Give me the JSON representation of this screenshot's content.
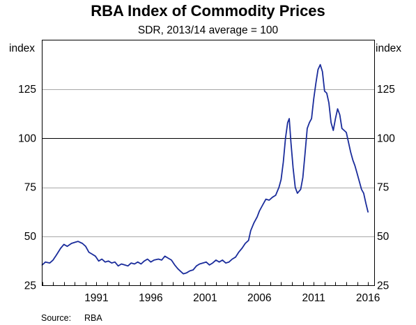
{
  "chart_data": {
    "type": "line",
    "title": "RBA Index of Commodity Prices",
    "subtitle": "SDR, 2013/14 average = 100",
    "ylabel_left": "index",
    "ylabel_right": "index",
    "xlim": [
      1986.0,
      2016.6
    ],
    "ylim": [
      25,
      150
    ],
    "yticks": [
      25,
      50,
      75,
      100,
      125
    ],
    "xticks": [
      {
        "value": 1991.0,
        "label": "1991"
      },
      {
        "value": 1996.0,
        "label": "1996"
      },
      {
        "value": 2001.0,
        "label": "2001"
      },
      {
        "value": 2006.0,
        "label": "2006"
      },
      {
        "value": 2011.0,
        "label": "2011"
      },
      {
        "value": 2016.0,
        "label": "2016"
      }
    ],
    "grid": "horizontal",
    "reference_line": 100,
    "series": [
      {
        "color": "#1a2c9b",
        "points": [
          [
            1986.0,
            35.5
          ],
          [
            1986.3,
            37.0
          ],
          [
            1986.7,
            36.5
          ],
          [
            1987.0,
            38.0
          ],
          [
            1987.3,
            40.5
          ],
          [
            1987.7,
            44.0
          ],
          [
            1988.0,
            46.0
          ],
          [
            1988.3,
            45.0
          ],
          [
            1988.7,
            46.5
          ],
          [
            1989.0,
            47.0
          ],
          [
            1989.3,
            47.5
          ],
          [
            1989.7,
            46.5
          ],
          [
            1990.0,
            45.0
          ],
          [
            1990.3,
            42.0
          ],
          [
            1990.6,
            41.0
          ],
          [
            1990.9,
            40.0
          ],
          [
            1991.2,
            37.5
          ],
          [
            1991.5,
            38.5
          ],
          [
            1991.8,
            37.0
          ],
          [
            1992.1,
            37.5
          ],
          [
            1992.4,
            36.5
          ],
          [
            1992.7,
            37.0
          ],
          [
            1993.0,
            35.0
          ],
          [
            1993.3,
            36.0
          ],
          [
            1993.6,
            35.5
          ],
          [
            1993.9,
            35.0
          ],
          [
            1994.2,
            36.5
          ],
          [
            1994.5,
            36.0
          ],
          [
            1994.8,
            37.0
          ],
          [
            1995.1,
            36.0
          ],
          [
            1995.4,
            37.5
          ],
          [
            1995.7,
            38.5
          ],
          [
            1996.0,
            37.0
          ],
          [
            1996.3,
            38.0
          ],
          [
            1996.7,
            38.5
          ],
          [
            1997.0,
            38.0
          ],
          [
            1997.3,
            40.0
          ],
          [
            1997.6,
            39.0
          ],
          [
            1997.9,
            38.0
          ],
          [
            1998.2,
            35.5
          ],
          [
            1998.5,
            33.5
          ],
          [
            1998.8,
            32.0
          ],
          [
            1999.0,
            31.0
          ],
          [
            1999.3,
            31.5
          ],
          [
            1999.6,
            32.5
          ],
          [
            1999.9,
            33.0
          ],
          [
            2000.2,
            35.0
          ],
          [
            2000.5,
            36.0
          ],
          [
            2000.8,
            36.5
          ],
          [
            2001.1,
            37.0
          ],
          [
            2001.4,
            35.5
          ],
          [
            2001.7,
            36.5
          ],
          [
            2002.0,
            38.0
          ],
          [
            2002.3,
            37.0
          ],
          [
            2002.6,
            38.0
          ],
          [
            2002.9,
            36.5
          ],
          [
            2003.2,
            37.0
          ],
          [
            2003.5,
            38.5
          ],
          [
            2003.8,
            39.5
          ],
          [
            2004.1,
            42.0
          ],
          [
            2004.4,
            44.0
          ],
          [
            2004.7,
            46.5
          ],
          [
            2005.0,
            48.0
          ],
          [
            2005.2,
            53.0
          ],
          [
            2005.5,
            57.0
          ],
          [
            2005.8,
            60.0
          ],
          [
            2006.0,
            63.0
          ],
          [
            2006.3,
            66.0
          ],
          [
            2006.6,
            69.0
          ],
          [
            2006.9,
            68.5
          ],
          [
            2007.2,
            70.0
          ],
          [
            2007.5,
            71.0
          ],
          [
            2007.8,
            75.0
          ],
          [
            2008.0,
            79.0
          ],
          [
            2008.2,
            88.0
          ],
          [
            2008.4,
            100.0
          ],
          [
            2008.6,
            108.0
          ],
          [
            2008.75,
            110.0
          ],
          [
            2008.9,
            98.0
          ],
          [
            2009.1,
            85.0
          ],
          [
            2009.3,
            75.0
          ],
          [
            2009.5,
            72.0
          ],
          [
            2009.8,
            74.0
          ],
          [
            2010.0,
            80.0
          ],
          [
            2010.2,
            92.0
          ],
          [
            2010.4,
            105.0
          ],
          [
            2010.6,
            108.0
          ],
          [
            2010.8,
            110.0
          ],
          [
            2011.0,
            120.0
          ],
          [
            2011.2,
            128.0
          ],
          [
            2011.4,
            135.0
          ],
          [
            2011.6,
            137.5
          ],
          [
            2011.8,
            134.0
          ],
          [
            2012.0,
            124.0
          ],
          [
            2012.2,
            123.0
          ],
          [
            2012.4,
            118.0
          ],
          [
            2012.6,
            108.0
          ],
          [
            2012.8,
            104.0
          ],
          [
            2013.0,
            110.0
          ],
          [
            2013.2,
            115.0
          ],
          [
            2013.4,
            112.0
          ],
          [
            2013.6,
            105.0
          ],
          [
            2013.8,
            104.0
          ],
          [
            2014.0,
            103.0
          ],
          [
            2014.2,
            98.0
          ],
          [
            2014.4,
            93.0
          ],
          [
            2014.6,
            89.0
          ],
          [
            2014.8,
            86.0
          ],
          [
            2015.0,
            82.0
          ],
          [
            2015.2,
            78.0
          ],
          [
            2015.4,
            74.0
          ],
          [
            2015.6,
            72.0
          ],
          [
            2015.8,
            67.0
          ],
          [
            2016.0,
            62.5
          ]
        ]
      }
    ]
  },
  "footer": {
    "source_label": "Source:",
    "source_value": "RBA"
  }
}
